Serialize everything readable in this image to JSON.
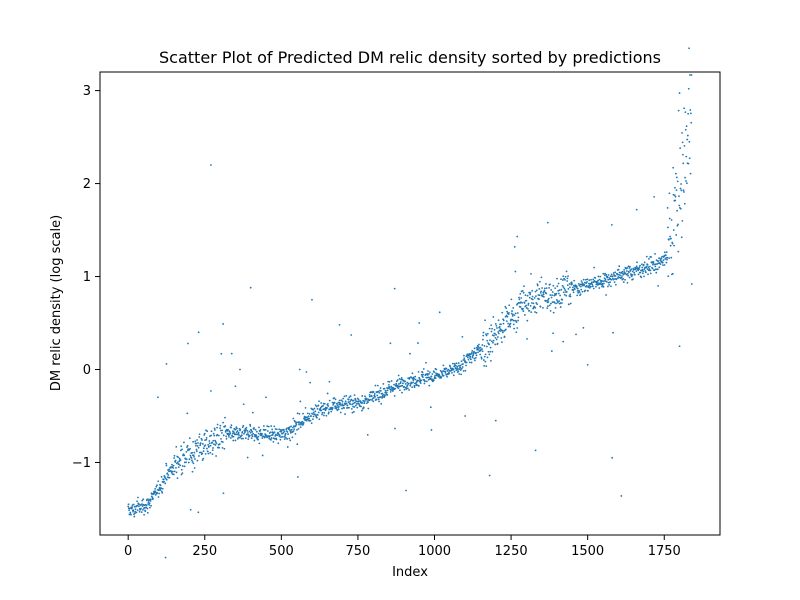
{
  "chart_data": {
    "type": "scatter",
    "title": "Scatter Plot of Predicted DM relic density sorted by predictions",
    "xlabel": "Index",
    "ylabel": "DM relic density (log scale)",
    "xlim": [
      -92,
      1932
    ],
    "ylim": [
      -1.78,
      3.2
    ],
    "xticks": [
      0,
      250,
      500,
      750,
      1000,
      1250,
      1500,
      1750
    ],
    "xtick_labels": [
      "0",
      "250",
      "500",
      "750",
      "1000",
      "1250",
      "1500",
      "1750"
    ],
    "yticks": [
      -1,
      0,
      1,
      2,
      3
    ],
    "ytick_labels": [
      "−1",
      "0",
      "1",
      "2",
      "3"
    ],
    "grid": false,
    "legend": "none",
    "point_color": "#1f77b4",
    "point_size": "tiny",
    "n_points_approx": 1840,
    "series": [
      {
        "values_description": "",
        "points": [
          [
            0,
            -1.53
          ],
          [
            10,
            -1.5
          ],
          [
            20,
            -1.52
          ],
          [
            30,
            -1.46
          ],
          [
            40,
            -1.5
          ],
          [
            50,
            -1.45
          ],
          [
            60,
            -1.47
          ],
          [
            70,
            -1.42
          ],
          [
            80,
            -1.38
          ],
          [
            90,
            -1.33
          ],
          [
            100,
            -1.28
          ],
          [
            110,
            -1.22
          ],
          [
            120,
            -1.18
          ],
          [
            130,
            -1.12
          ],
          [
            140,
            -1.08
          ],
          [
            150,
            -1.04
          ],
          [
            160,
            -1.0
          ],
          [
            170,
            -0.98
          ],
          [
            180,
            -0.95
          ],
          [
            190,
            -0.92
          ],
          [
            200,
            -0.9
          ],
          [
            220,
            -0.87
          ],
          [
            240,
            -0.83
          ],
          [
            260,
            -0.8
          ],
          [
            280,
            -0.76
          ],
          [
            300,
            -0.72
          ],
          [
            320,
            -0.7
          ],
          [
            340,
            -0.69
          ],
          [
            360,
            -0.7
          ],
          [
            380,
            -0.69
          ],
          [
            400,
            -0.68
          ],
          [
            420,
            -0.7
          ],
          [
            440,
            -0.69
          ],
          [
            460,
            -0.7
          ],
          [
            480,
            -0.7
          ],
          [
            500,
            -0.7
          ],
          [
            520,
            -0.68
          ],
          [
            540,
            -0.62
          ],
          [
            560,
            -0.57
          ],
          [
            580,
            -0.52
          ],
          [
            600,
            -0.47
          ],
          [
            620,
            -0.44
          ],
          [
            640,
            -0.42
          ],
          [
            660,
            -0.4
          ],
          [
            680,
            -0.38
          ],
          [
            700,
            -0.37
          ],
          [
            720,
            -0.36
          ],
          [
            740,
            -0.36
          ],
          [
            760,
            -0.35
          ],
          [
            780,
            -0.33
          ],
          [
            800,
            -0.3
          ],
          [
            820,
            -0.27
          ],
          [
            840,
            -0.23
          ],
          [
            860,
            -0.2
          ],
          [
            880,
            -0.17
          ],
          [
            900,
            -0.15
          ],
          [
            920,
            -0.13
          ],
          [
            940,
            -0.11
          ],
          [
            960,
            -0.09
          ],
          [
            980,
            -0.08
          ],
          [
            1000,
            -0.07
          ],
          [
            1020,
            -0.05
          ],
          [
            1040,
            -0.03
          ],
          [
            1060,
            -0.01
          ],
          [
            1080,
            0.02
          ],
          [
            1100,
            0.08
          ],
          [
            1120,
            0.14
          ],
          [
            1140,
            0.2
          ],
          [
            1160,
            0.26
          ],
          [
            1180,
            0.3
          ],
          [
            1200,
            0.37
          ],
          [
            1220,
            0.44
          ],
          [
            1240,
            0.52
          ],
          [
            1260,
            0.6
          ],
          [
            1280,
            0.67
          ],
          [
            1300,
            0.72
          ],
          [
            1320,
            0.75
          ],
          [
            1340,
            0.77
          ],
          [
            1360,
            0.79
          ],
          [
            1380,
            0.8
          ],
          [
            1400,
            0.82
          ],
          [
            1420,
            0.84
          ],
          [
            1440,
            0.86
          ],
          [
            1460,
            0.87
          ],
          [
            1480,
            0.89
          ],
          [
            1500,
            0.91
          ],
          [
            1520,
            0.93
          ],
          [
            1540,
            0.95
          ],
          [
            1560,
            0.97
          ],
          [
            1580,
            0.99
          ],
          [
            1600,
            1.01
          ],
          [
            1620,
            1.03
          ],
          [
            1640,
            1.05
          ],
          [
            1660,
            1.07
          ],
          [
            1680,
            1.09
          ],
          [
            1700,
            1.11
          ],
          [
            1720,
            1.13
          ],
          [
            1740,
            1.16
          ],
          [
            1760,
            1.2
          ],
          [
            1770,
            1.35
          ],
          [
            1780,
            1.6
          ],
          [
            1790,
            1.75
          ],
          [
            1800,
            1.95
          ],
          [
            1810,
            2.1
          ],
          [
            1820,
            2.3
          ],
          [
            1830,
            2.55
          ],
          [
            1835,
            2.95
          ]
        ],
        "outliers": [
          [
            270,
            2.2
          ],
          [
            400,
            0.88
          ],
          [
            230,
            0.4
          ],
          [
            310,
            0.49
          ],
          [
            195,
            0.28
          ],
          [
            125,
            0.06
          ],
          [
            350,
            -0.18
          ],
          [
            365,
            0.0
          ],
          [
            600,
            0.75
          ],
          [
            690,
            0.48
          ],
          [
            870,
            0.87
          ],
          [
            1180,
            -1.14
          ],
          [
            1330,
            -0.87
          ],
          [
            1370,
            1.58
          ],
          [
            1270,
            1.43
          ],
          [
            1610,
            -1.36
          ],
          [
            1580,
            -0.95
          ],
          [
            1660,
            1.72
          ],
          [
            1800,
            0.25
          ],
          [
            1840,
            0.92
          ],
          [
            1730,
            0.9
          ],
          [
            1500,
            0.05
          ],
          [
            1420,
            0.3
          ],
          [
            1200,
            -0.55
          ],
          [
            1100,
            -0.5
          ],
          [
            950,
            0.5
          ],
          [
            560,
            0.0
          ],
          [
            450,
            -0.3
          ],
          [
            210,
            -1.1
          ],
          [
            990,
            -0.65
          ]
        ]
      }
    ]
  }
}
